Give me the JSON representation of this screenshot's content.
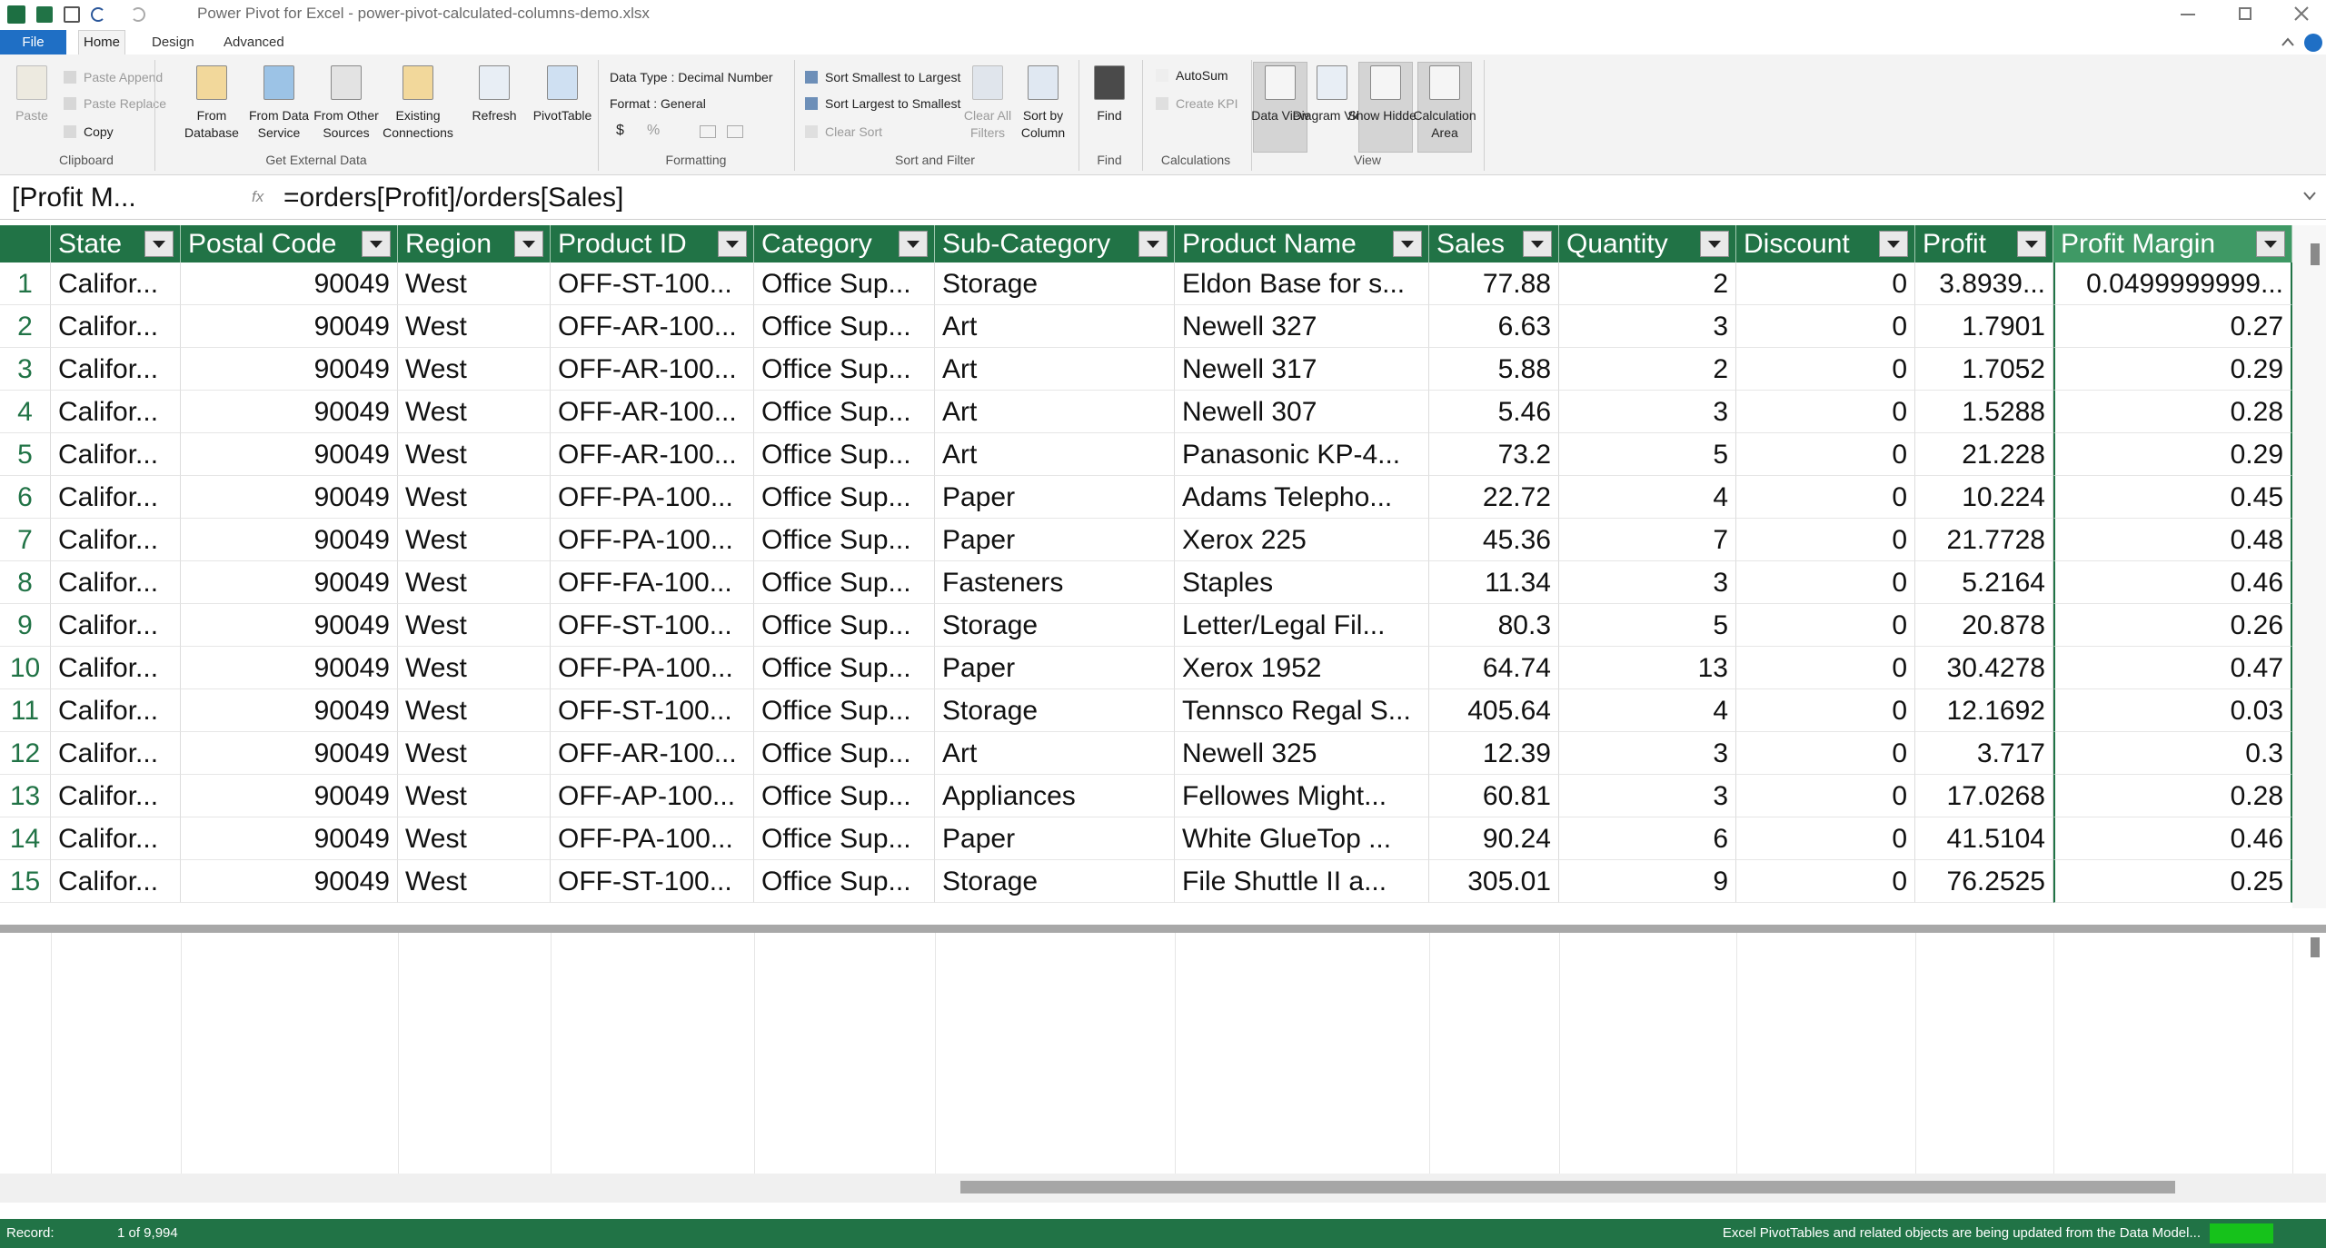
{
  "title_bar": {
    "title": "Power Pivot for Excel - power-pivot-calculated-columns-demo.xlsx"
  },
  "tabs": [
    "File",
    "Home",
    "Design",
    "Advanced"
  ],
  "ribbon": {
    "clipboard": {
      "label": "Clipboard",
      "paste": "Paste",
      "paste_append": "Paste Append",
      "paste_replace": "Paste Replace",
      "copy": "Copy"
    },
    "get_external_data": {
      "label": "Get External Data",
      "buttons": [
        "From Database",
        "From Data Service",
        "From Other Sources",
        "Existing Connections"
      ]
    },
    "refresh": "Refresh",
    "pivottable": "PivotTable",
    "formatting": {
      "label": "Formatting",
      "data_type": "Data Type : Decimal Number",
      "format": "Format : General",
      "currency": "$",
      "percent": "%"
    },
    "sort_filter": {
      "label": "Sort and Filter",
      "sort_asc": "Sort Smallest to Largest",
      "sort_desc": "Sort Largest to Smallest",
      "clear_sort": "Clear Sort",
      "clear_filters": "Clear All Filters",
      "sort_by_column": "Sort by Column"
    },
    "find": {
      "label": "Find",
      "button": "Find"
    },
    "calculations": {
      "label": "Calculations",
      "autosum": "AutoSum",
      "create_kpi": "Create KPI"
    },
    "view": {
      "label": "View",
      "buttons": [
        "Data View",
        "Diagram View",
        "Show Hidden",
        "Calculation Area"
      ]
    }
  },
  "formula_bar": {
    "name_box": "[Profit M...",
    "fx": "fx",
    "formula": "=orders[Profit]/orders[Sales]"
  },
  "table": {
    "columns": [
      "State",
      "Postal Code",
      "Region",
      "Product ID",
      "Category",
      "Sub-Category",
      "Product Name",
      "Sales",
      "Quantity",
      "Discount",
      "Profit",
      "Profit Margin"
    ],
    "row_numbers": [
      1,
      2,
      3,
      4,
      5,
      6,
      7,
      8,
      9,
      10,
      11,
      12,
      13,
      14,
      15
    ],
    "rows": [
      [
        "Califor...",
        "90049",
        "West",
        "OFF-ST-100...",
        "Office Sup...",
        "Storage",
        "Eldon Base for s...",
        "77.88",
        "2",
        "0",
        "3.8939...",
        "0.0499999999..."
      ],
      [
        "Califor...",
        "90049",
        "West",
        "OFF-AR-100...",
        "Office Sup...",
        "Art",
        "Newell 327",
        "6.63",
        "3",
        "0",
        "1.7901",
        "0.27"
      ],
      [
        "Califor...",
        "90049",
        "West",
        "OFF-AR-100...",
        "Office Sup...",
        "Art",
        "Newell 317",
        "5.88",
        "2",
        "0",
        "1.7052",
        "0.29"
      ],
      [
        "Califor...",
        "90049",
        "West",
        "OFF-AR-100...",
        "Office Sup...",
        "Art",
        "Newell 307",
        "5.46",
        "3",
        "0",
        "1.5288",
        "0.28"
      ],
      [
        "Califor...",
        "90049",
        "West",
        "OFF-AR-100...",
        "Office Sup...",
        "Art",
        "Panasonic KP-4...",
        "73.2",
        "5",
        "0",
        "21.228",
        "0.29"
      ],
      [
        "Califor...",
        "90049",
        "West",
        "OFF-PA-100...",
        "Office Sup...",
        "Paper",
        "Adams Telepho...",
        "22.72",
        "4",
        "0",
        "10.224",
        "0.45"
      ],
      [
        "Califor...",
        "90049",
        "West",
        "OFF-PA-100...",
        "Office Sup...",
        "Paper",
        "Xerox 225",
        "45.36",
        "7",
        "0",
        "21.7728",
        "0.48"
      ],
      [
        "Califor...",
        "90049",
        "West",
        "OFF-FA-100...",
        "Office Sup...",
        "Fasteners",
        "Staples",
        "11.34",
        "3",
        "0",
        "5.2164",
        "0.46"
      ],
      [
        "Califor...",
        "90049",
        "West",
        "OFF-ST-100...",
        "Office Sup...",
        "Storage",
        "Letter/Legal Fil...",
        "80.3",
        "5",
        "0",
        "20.878",
        "0.26"
      ],
      [
        "Califor...",
        "90049",
        "West",
        "OFF-PA-100...",
        "Office Sup...",
        "Paper",
        "Xerox 1952",
        "64.74",
        "13",
        "0",
        "30.4278",
        "0.47"
      ],
      [
        "Califor...",
        "90049",
        "West",
        "OFF-ST-100...",
        "Office Sup...",
        "Storage",
        "Tennsco Regal S...",
        "405.64",
        "4",
        "0",
        "12.1692",
        "0.03"
      ],
      [
        "Califor...",
        "90049",
        "West",
        "OFF-AR-100...",
        "Office Sup...",
        "Art",
        "Newell 325",
        "12.39",
        "3",
        "0",
        "3.717",
        "0.3"
      ],
      [
        "Califor...",
        "90049",
        "West",
        "OFF-AP-100...",
        "Office Sup...",
        "Appliances",
        "Fellowes Might...",
        "60.81",
        "3",
        "0",
        "17.0268",
        "0.28"
      ],
      [
        "Califor...",
        "90049",
        "West",
        "OFF-PA-100...",
        "Office Sup...",
        "Paper",
        "White GlueTop ...",
        "90.24",
        "6",
        "0",
        "41.5104",
        "0.46"
      ],
      [
        "Califor...",
        "90049",
        "West",
        "OFF-ST-100...",
        "Office Sup...",
        "Storage",
        "File Shuttle II a...",
        "305.01",
        "9",
        "0",
        "76.2525",
        "0.25"
      ]
    ]
  },
  "status_bar": {
    "record_label": "Record:",
    "record": "1 of 9,994",
    "message": "Excel PivotTables and related objects are being updated from the Data Model..."
  }
}
